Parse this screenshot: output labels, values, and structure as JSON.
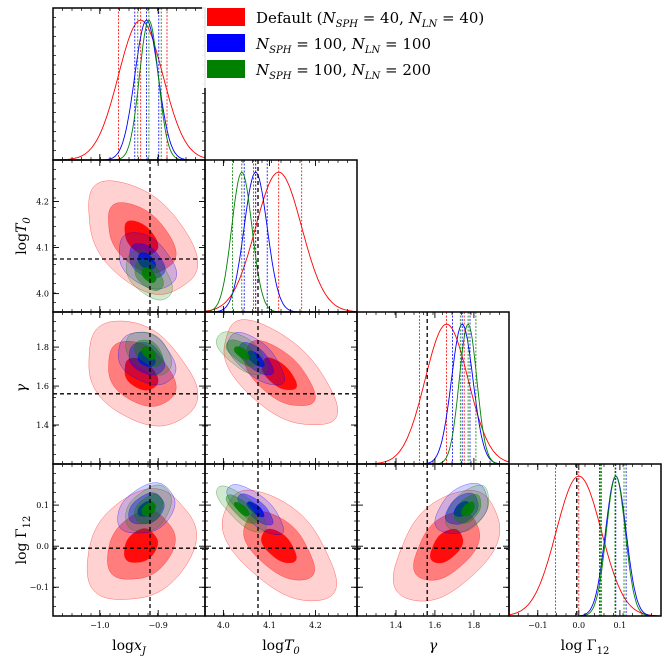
{
  "chart_data": {
    "type": "corner",
    "parameters": [
      {
        "key": "logxJ",
        "label_main": "log",
        "label_sym": "x",
        "label_sub": "J",
        "range": [
          -1.08,
          -0.82
        ],
        "ticks": [
          {
            "v": -1.0,
            "t": "−1.0"
          },
          {
            "v": -0.9,
            "t": "−0.9"
          }
        ],
        "truth": -0.914
      },
      {
        "key": "logT0",
        "label_main": "log",
        "label_sym": "T",
        "label_sub": "0",
        "range": [
          3.96,
          4.29
        ],
        "ticks": [
          {
            "v": 4.0,
            "t": "4.0"
          },
          {
            "v": 4.1,
            "t": "4.1"
          },
          {
            "v": 4.2,
            "t": "4.2"
          }
        ],
        "truth": 4.075
      },
      {
        "key": "gamma",
        "label_main": "",
        "label_sym": "γ",
        "label_sub": "",
        "range": [
          1.2,
          1.98
        ],
        "ticks": [
          {
            "v": 1.4,
            "t": "1.4"
          },
          {
            "v": 1.6,
            "t": "1.6"
          },
          {
            "v": 1.8,
            "t": "1.8"
          }
        ],
        "truth": 1.56
      },
      {
        "key": "logGamma12",
        "label_main": "log Γ",
        "label_sym": "",
        "label_sub": "12",
        "range": [
          -0.17,
          0.2
        ],
        "ticks": [
          {
            "v": -0.1,
            "t": "−0.1"
          },
          {
            "v": 0.0,
            "t": "0.0"
          },
          {
            "v": 0.1,
            "t": "0.1"
          }
        ],
        "truth": -0.005
      }
    ],
    "series": [
      {
        "name": "Default",
        "legend_prefix": "Default (",
        "legend_args": [
          {
            "sym": "N",
            "sub": "SPH",
            "val": " = 40"
          },
          {
            "sym": "N",
            "sub": "LN",
            "val": " = 40"
          }
        ],
        "legend_suffix": ")",
        "color": "#ff0000",
        "mean": [
          -0.93,
          4.12,
          1.66,
          0.0
        ],
        "sigma": [
          0.038,
          0.05,
          0.11,
          0.055
        ],
        "quantiles": [
          [
            -0.968,
            -0.93,
            -0.885
          ],
          [
            4.07,
            4.12,
            4.17
          ],
          [
            1.52,
            1.66,
            1.75
          ],
          [
            -0.057,
            0.0,
            0.055
          ]
        ],
        "corr": {
          "0,1": -0.45,
          "0,2": -0.35,
          "0,3": 0.25,
          "1,2": -0.6,
          "1,3": -0.55,
          "2,3": 0.45
        }
      },
      {
        "name": "N_SPH=100, N_LN=100",
        "legend_prefix": "",
        "legend_args": [
          {
            "sym": "N",
            "sub": "SPH",
            "val": " = 100"
          },
          {
            "sym": "N",
            "sub": "LN",
            "val": " = 100"
          }
        ],
        "legend_suffix": "",
        "color": "#0000ff",
        "mean": [
          -0.92,
          4.07,
          1.74,
          0.09
        ],
        "sigma": [
          0.02,
          0.025,
          0.055,
          0.025
        ],
        "quantiles": [
          [
            -0.94,
            -0.92,
            -0.899
          ],
          [
            4.045,
            4.07,
            4.095
          ],
          [
            1.69,
            1.74,
            1.78
          ],
          [
            0.05,
            0.09,
            0.115
          ]
        ],
        "corr": {
          "0,1": -0.4,
          "0,2": -0.3,
          "0,3": 0.3,
          "1,2": -0.65,
          "1,3": -0.75,
          "2,3": 0.4
        }
      },
      {
        "name": "N_SPH=100, N_LN=200",
        "legend_prefix": "",
        "legend_args": [
          {
            "sym": "N",
            "sub": "SPH",
            "val": " = 100"
          },
          {
            "sym": "N",
            "sub": "LN",
            "val": " = 200"
          }
        ],
        "legend_suffix": "",
        "color": "#008000",
        "mean": [
          -0.916,
          4.04,
          1.77,
          0.09
        ],
        "sigma": [
          0.016,
          0.022,
          0.045,
          0.023
        ],
        "quantiles": [
          [
            -0.935,
            -0.916,
            -0.895
          ],
          [
            4.02,
            4.04,
            4.065
          ],
          [
            1.73,
            1.77,
            1.81
          ],
          [
            0.053,
            0.088,
            0.11
          ]
        ],
        "corr": {
          "0,1": -0.45,
          "0,2": -0.4,
          "0,3": 0.35,
          "1,2": -0.6,
          "1,3": -0.75,
          "2,3": 0.45
        }
      }
    ]
  }
}
